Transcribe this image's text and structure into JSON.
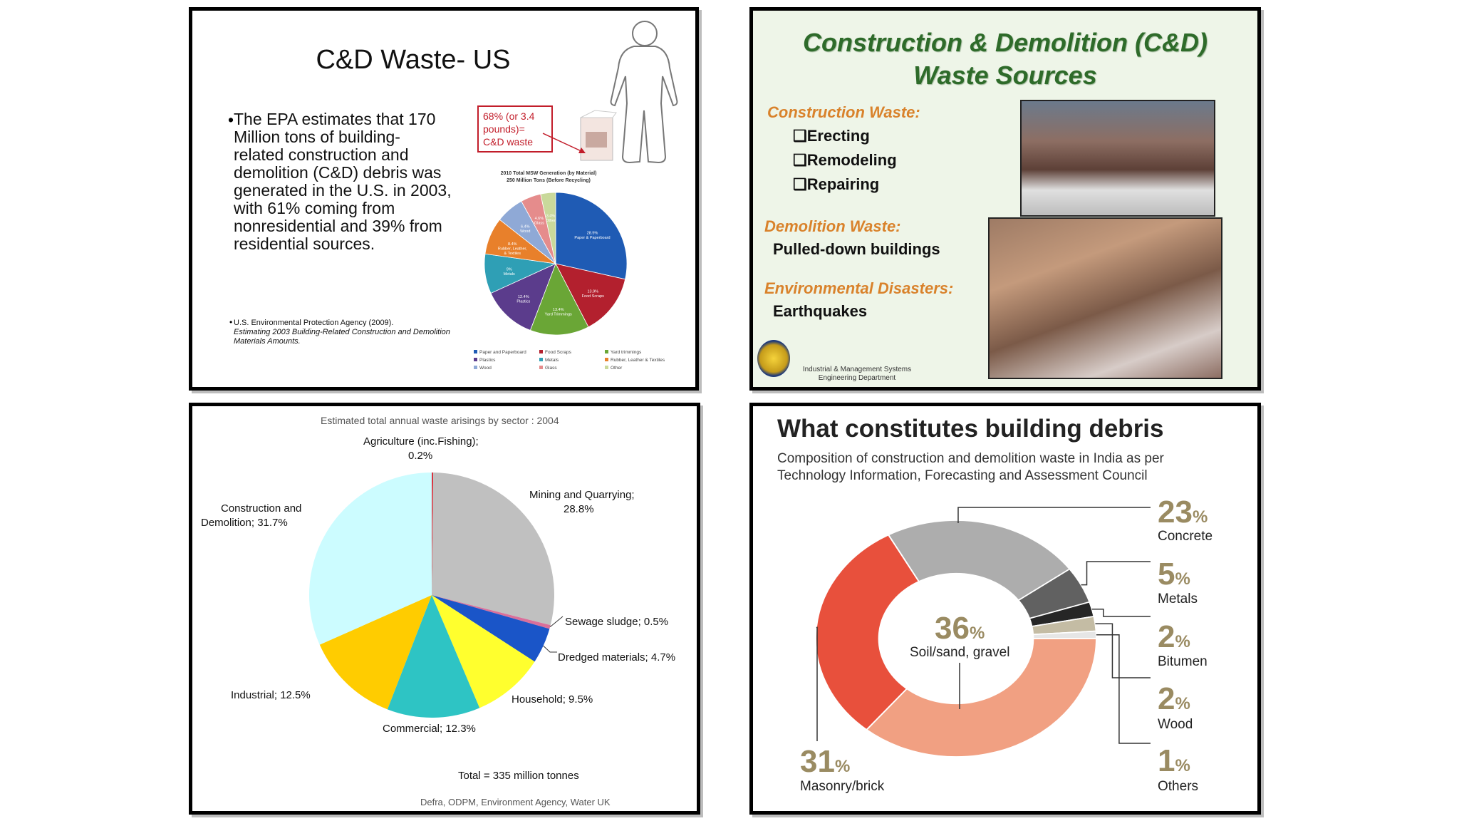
{
  "panel1": {
    "title": "C&D Waste- US",
    "bullet": "The EPA estimates that 170 Million tons of building- related construction and demolition (C&D) debris was generated in the U.S. in 2003, with 61% coming from nonresidential and 39% from residential sources.",
    "citation_line1": "U.S. Environmental Protection Agency (2009).",
    "citation_line2": "Estimating 2003 Building-Related Construction and Demolition Materials Amounts.",
    "callout": "68% (or 3.4 pounds)= C&D waste",
    "chart_title_line1": "2010 Total MSW Generation (by Material)",
    "chart_title_line2": "250 Million Tons (Before Recycling)"
  },
  "panel2": {
    "title_line1": "Construction & Demolition (C&D)",
    "title_line2": "Waste Sources",
    "construction_heading": "Construction Waste:",
    "construction_items": [
      "Erecting",
      "Remodeling",
      "Repairing"
    ],
    "demolition_heading": "Demolition Waste:",
    "demolition_item": "Pulled-down buildings",
    "disasters_heading": "Environmental Disasters:",
    "disasters_item": "Earthquakes",
    "dept_line1": "Industrial & Management Systems",
    "dept_line2": "Engineering Department"
  },
  "panel3": {
    "title": "Estimated total annual waste arisings by sector : 2004",
    "total": "Total = 335 million tonnes",
    "source": "Defra, ODPM, Environment Agency, Water UK",
    "labels": {
      "agriculture_a": "Agriculture (inc.Fishing);",
      "agriculture_b": "0.2%",
      "mining_a": "Mining and Quarrying;",
      "mining_b": "28.8%",
      "sewage": "Sewage sludge; 0.5%",
      "dredged": "Dredged materials; 4.7%",
      "household": "Household; 9.5%",
      "commercial": "Commercial; 12.3%",
      "industrial": "Industrial; 12.5%",
      "cd_a": "Construction and",
      "cd_b": "Demolition; 31.7%"
    }
  },
  "panel4": {
    "title": "What constitutes building debris",
    "subtitle": "Composition of construction and demolition waste in India as per Technology Information, Forecasting and Assessment Council",
    "items": [
      {
        "num": "23",
        "unit": "%",
        "label": "Concrete"
      },
      {
        "num": "5",
        "unit": "%",
        "label": "Metals"
      },
      {
        "num": "2",
        "unit": "%",
        "label": "Bitumen"
      },
      {
        "num": "2",
        "unit": "%",
        "label": "Wood"
      },
      {
        "num": "1",
        "unit": "%",
        "label": "Others"
      }
    ],
    "center": {
      "num": "36",
      "unit": "%",
      "label": "Soil/sand, gravel"
    },
    "masonry": {
      "num": "31",
      "unit": "%",
      "label": "Masonry/brick"
    }
  },
  "chart_data": [
    {
      "type": "pie",
      "categories": [
        "Paper & Paperboard",
        "Food Scraps",
        "Yard Trimmings",
        "Plastics",
        "Metals",
        "Rubber, Leather, & Textiles",
        "Wood",
        "Glass",
        "Other"
      ],
      "values": [
        28.5,
        13.9,
        13.4,
        12.4,
        9.0,
        8.4,
        6.4,
        4.6,
        3.4
      ],
      "value_labels": [
        "28.5%\nPaper & Paperboard",
        "13.9%\nFood Scraps",
        "13.4%\nYard Trimmings",
        "12.4%\nPlastics",
        "9%\nMetals",
        "8.4%\nRubber, Leather,\n& Textiles",
        "6.4%\nWood",
        "4.6%\nGlass",
        "3.4%\nOther"
      ],
      "colors": [
        "#1f5bb4",
        "#b3202e",
        "#6aa636",
        "#5b3c8c",
        "#2f9fb5",
        "#e8802b",
        "#8fa9d6",
        "#e58c8c",
        "#c9d99b"
      ],
      "legend": [
        "Paper and Paperboard",
        "Food Scraps",
        "Yard trimmings",
        "Plastics",
        "Metals",
        "Rubber, Leather & Textiles",
        "Wood",
        "Glass",
        "Other"
      ],
      "legend_placement": "bottom"
    },
    {
      "type": "pie",
      "title": "Estimated total annual waste arisings by sector : 2004",
      "categories": [
        "Agriculture (inc.Fishing)",
        "Mining and Quarrying",
        "Sewage sludge",
        "Dredged materials",
        "Household",
        "Commercial",
        "Industrial",
        "Construction and Demolition"
      ],
      "values": [
        0.2,
        28.8,
        0.5,
        4.7,
        9.5,
        12.3,
        12.5,
        31.7
      ],
      "colors": [
        "#d9333f",
        "#c0c0c0",
        "#d96f9a",
        "#1a55c8",
        "#ffff2e",
        "#2ec4c4",
        "#ffcc00",
        "#ccfcff"
      ]
    },
    {
      "type": "pie",
      "title": "What constitutes building debris",
      "categories": [
        "Concrete",
        "Metals",
        "Bitumen",
        "Wood",
        "Others",
        "Soil/sand, gravel",
        "Masonry/brick"
      ],
      "values": [
        23,
        5,
        2,
        2,
        1,
        36,
        31
      ],
      "colors": [
        "#adadad",
        "#616161",
        "#262626",
        "#c4bca4",
        "#e6e6e6",
        "#f1a082",
        "#e8503c"
      ]
    }
  ]
}
